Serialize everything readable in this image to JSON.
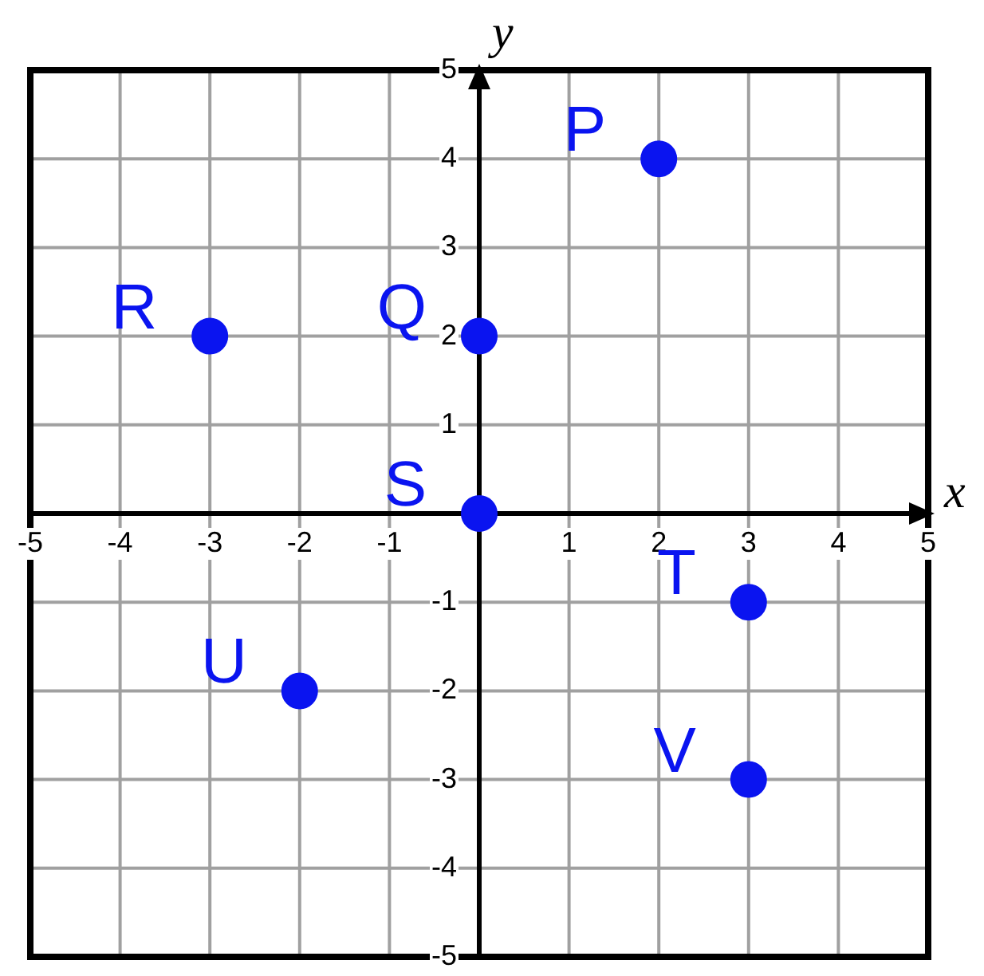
{
  "chart_data": {
    "type": "scatter",
    "xlabel": "x",
    "ylabel": "y",
    "x": [
      2,
      0,
      -3,
      0,
      3,
      -2,
      3
    ],
    "values": [
      4,
      2,
      2,
      0,
      -1,
      -2,
      -3
    ],
    "color": "#0a14f0",
    "marker": "circle",
    "grid": true,
    "legend": false,
    "xlim": [
      -5,
      5
    ],
    "ylim": [
      -5,
      5
    ],
    "xticks": [
      -5,
      -4,
      -3,
      -2,
      -1,
      {
        "value": 0,
        "label": null
      },
      1,
      2,
      3,
      4,
      5
    ],
    "yticks": [
      -5,
      -4,
      -3,
      -2,
      -1,
      {
        "value": 0,
        "label": null
      },
      1,
      2,
      3,
      4,
      5
    ],
    "annotations": [
      {
        "text": "P",
        "x": 2,
        "y": 4
      },
      {
        "text": "Q",
        "x": 0,
        "y": 2
      },
      {
        "text": "R",
        "x": -3,
        "y": 2
      },
      {
        "text": "S",
        "x": 0,
        "y": 0
      },
      {
        "text": "T",
        "x": 3,
        "y": -1
      },
      {
        "text": "U",
        "x": -2,
        "y": -2
      },
      {
        "text": "V",
        "x": 3,
        "y": -3
      }
    ]
  }
}
